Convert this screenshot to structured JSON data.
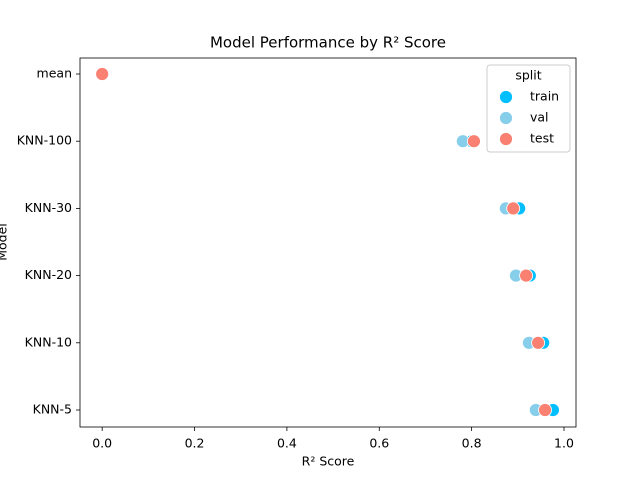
{
  "chart_data": {
    "type": "scatter",
    "title": "Model Performance by R² Score",
    "x_label": "R² Score",
    "y_label": "Model",
    "categories": [
      "mean",
      "KNN-100",
      "KNN-30",
      "KNN-20",
      "KNN-10",
      "KNN-5"
    ],
    "series": [
      {
        "name": "train",
        "color": "#00bfff",
        "values": [
          0,
          0.8,
          0.903,
          0.926,
          0.955,
          0.976
        ]
      },
      {
        "name": "val",
        "color": "#87ceeb",
        "values": [
          0,
          0.781,
          0.874,
          0.896,
          0.924,
          0.939
        ]
      },
      {
        "name": "test",
        "color": "#fa8072",
        "values": [
          0,
          0.805,
          0.89,
          0.918,
          0.944,
          0.959
        ]
      }
    ],
    "xlim": [
      -0.048,
      1.026
    ],
    "xticks": [
      {
        "value": 0,
        "label": "0.0"
      },
      0.2,
      0.4,
      0.6,
      0.8,
      {
        "value": 1,
        "label": "1.0"
      }
    ],
    "legend_title": "split",
    "legend_position": "upper right"
  }
}
